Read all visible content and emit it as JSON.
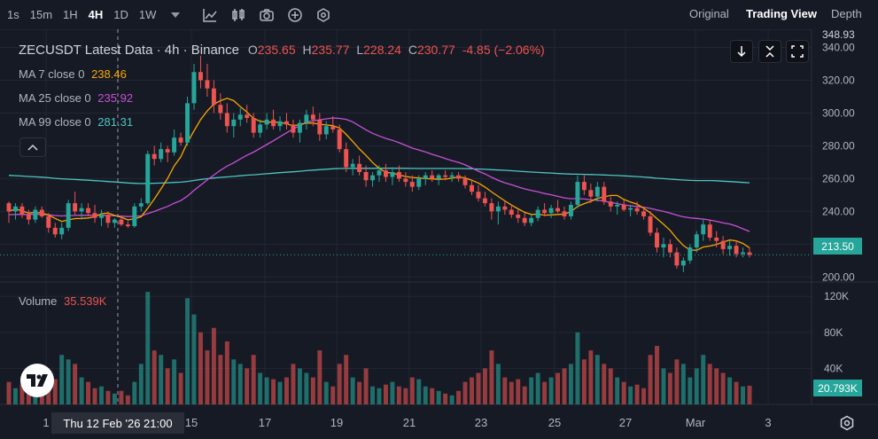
{
  "toolbar": {
    "intervals": [
      "1s",
      "15m",
      "1H",
      "4H",
      "1D",
      "1W"
    ],
    "active_interval": "4H",
    "views": [
      "Original",
      "Trading View",
      "Depth"
    ],
    "active_view": "Trading View"
  },
  "header": {
    "symbol": "ZECUSDT Latest Data · 4h · Binance",
    "o_label": "O",
    "o_value": "235.65",
    "h_label": "H",
    "h_value": "235.77",
    "l_label": "L",
    "l_value": "228.24",
    "c_label": "C",
    "c_value": "230.77",
    "change": "-4.85 (−2.06%)"
  },
  "indicators": {
    "ma7_label": "MA 7 close 0",
    "ma7_value": "238.46",
    "ma25_label": "MA 25 close 0",
    "ma25_value": "235.92",
    "ma99_label": "MA 99 close 0",
    "ma99_value": "281.31",
    "volume_label": "Volume",
    "volume_value": "35.539K"
  },
  "price_axis": {
    "top_partial": "348.93",
    "ticks": [
      "340.00",
      "320.00",
      "300.00",
      "280.00",
      "260.00",
      "240.00",
      "220.00",
      "200.00"
    ],
    "last_price": "213.50"
  },
  "volume_axis": {
    "ticks": [
      "120K",
      "80K",
      "40K"
    ],
    "last_volume": "20.793K"
  },
  "time_axis": {
    "ticks": [
      "15",
      "17",
      "19",
      "21",
      "23",
      "25",
      "27",
      "Mar",
      "3"
    ],
    "partial_left": "1",
    "crosshair_label": "Thu 12 Feb '26   21:00"
  },
  "colors": {
    "background": "#161a25",
    "up": "#26a69a",
    "down": "#ef5350",
    "ma7": "#f7a600",
    "ma25": "#c850d6",
    "ma99": "#4ec5c1",
    "grid": "#232735"
  },
  "icons": [
    "chevron-down-icon",
    "indicators-icon",
    "chart-type-icon",
    "camera-icon",
    "add-circle-icon",
    "settings-hex-icon",
    "arrow-down-icon",
    "collapse-arrows-icon",
    "fullscreen-icon",
    "chevron-up-icon",
    "tradingview-logo-icon",
    "settings-gear-icon"
  ],
  "chart_data": {
    "type": "candlestick",
    "symbol": "ZECUSDT",
    "interval": "4h",
    "exchange": "Binance",
    "ylim": [
      198,
      348.93
    ],
    "volume_ylim": [
      0,
      135000
    ],
    "x_ticks": [
      "15",
      "17",
      "19",
      "21",
      "23",
      "25",
      "27",
      "Mar",
      "3"
    ],
    "y_ticks": [
      340,
      320,
      300,
      280,
      260,
      240,
      220,
      200
    ],
    "volume_ticks": [
      "120K",
      "80K",
      "40K"
    ],
    "grid": true,
    "last_price": 213.5,
    "last_volume": 20793,
    "candles": [
      [
        245.0,
        246.0,
        233.0,
        240.0,
        25000
      ],
      [
        240.0,
        245.0,
        235.0,
        243.0,
        18000
      ],
      [
        243.0,
        245.0,
        236.0,
        238.0,
        22000
      ],
      [
        238.0,
        241.0,
        232.0,
        235.0,
        15000
      ],
      [
        235.0,
        243.0,
        233.0,
        241.0,
        30000
      ],
      [
        241.0,
        243.0,
        236.0,
        237.0,
        20000
      ],
      [
        237.0,
        239.0,
        227.0,
        230.0,
        35000
      ],
      [
        230.0,
        233.0,
        224.0,
        226.0,
        28000
      ],
      [
        226.0,
        233.0,
        223.0,
        230.0,
        55000
      ],
      [
        230.0,
        247.0,
        228.0,
        245.0,
        50000
      ],
      [
        245.0,
        252.0,
        238.0,
        240.0,
        45000
      ],
      [
        240.0,
        245.0,
        235.0,
        242.0,
        30000
      ],
      [
        242.0,
        245.0,
        237.0,
        239.0,
        25000
      ],
      [
        239.0,
        244.0,
        233.0,
        236.0,
        18000
      ],
      [
        236.0,
        241.0,
        231.0,
        238.0,
        20000
      ],
      [
        238.0,
        240.0,
        230.0,
        233.0,
        15000
      ],
      [
        233.0,
        236.0,
        230.0,
        235.0,
        12000
      ],
      [
        235.0,
        237.0,
        231.0,
        232.0,
        15000
      ],
      [
        232.0,
        234.0,
        230.0,
        231.0,
        10000
      ],
      [
        231.0,
        245.0,
        230.0,
        243.0,
        25000
      ],
      [
        243.0,
        248.0,
        240.0,
        245.0,
        45000
      ],
      [
        245.0,
        277.0,
        244.0,
        275.0,
        125000
      ],
      [
        275.0,
        280.0,
        268.0,
        272.0,
        60000
      ],
      [
        272.0,
        282.0,
        270.0,
        278.0,
        55000
      ],
      [
        278.0,
        280.0,
        270.0,
        276.0,
        40000
      ],
      [
        276.0,
        290.0,
        274.0,
        285.0,
        50000
      ],
      [
        285.0,
        288.0,
        280.0,
        282.0,
        35000
      ],
      [
        282.0,
        310.0,
        280.0,
        306.0,
        118000
      ],
      [
        306.0,
        330.0,
        302.0,
        325.0,
        100000
      ],
      [
        325.0,
        335.0,
        315.0,
        320.0,
        80000
      ],
      [
        320.0,
        330.0,
        310.0,
        315.0,
        60000
      ],
      [
        315.0,
        320.0,
        300.0,
        305.0,
        85000
      ],
      [
        305.0,
        312.0,
        296.0,
        300.0,
        55000
      ],
      [
        300.0,
        306.0,
        288.0,
        292.0,
        70000
      ],
      [
        292.0,
        300.0,
        285.0,
        296.0,
        50000
      ],
      [
        296.0,
        303.0,
        292.0,
        299.0,
        45000
      ],
      [
        299.0,
        305.0,
        294.0,
        297.0,
        40000
      ],
      [
        297.0,
        300.0,
        285.0,
        288.0,
        55000
      ],
      [
        288.0,
        296.0,
        285.0,
        293.0,
        35000
      ],
      [
        293.0,
        300.0,
        290.0,
        296.0,
        30000
      ],
      [
        296.0,
        302.0,
        290.0,
        292.0,
        28000
      ],
      [
        292.0,
        298.0,
        289.0,
        295.0,
        25000
      ],
      [
        295.0,
        300.0,
        290.0,
        293.0,
        30000
      ],
      [
        293.0,
        296.0,
        285.0,
        288.0,
        45000
      ],
      [
        288.0,
        296.0,
        282.0,
        294.0,
        40000
      ],
      [
        294.0,
        302.0,
        290.0,
        299.0,
        35000
      ],
      [
        299.0,
        304.0,
        292.0,
        296.0,
        30000
      ],
      [
        296.0,
        300.0,
        283.0,
        287.0,
        60000
      ],
      [
        287.0,
        295.0,
        284.0,
        292.0,
        25000
      ],
      [
        292.0,
        298.0,
        288.0,
        290.0,
        20000
      ],
      [
        290.0,
        293.0,
        276.0,
        278.0,
        45000
      ],
      [
        278.0,
        282.0,
        264.0,
        267.0,
        55000
      ],
      [
        267.0,
        272.0,
        262.0,
        269.0,
        30000
      ],
      [
        269.0,
        274.0,
        262.0,
        264.0,
        25000
      ],
      [
        264.0,
        268.0,
        255.0,
        259.0,
        40000
      ],
      [
        259.0,
        264.0,
        255.0,
        262.0,
        20000
      ],
      [
        262.0,
        268.0,
        258.0,
        265.0,
        18000
      ],
      [
        265.0,
        269.0,
        258.0,
        261.0,
        22000
      ],
      [
        261.0,
        267.0,
        256.0,
        264.0,
        25000
      ],
      [
        264.0,
        268.0,
        258.0,
        260.0,
        20000
      ],
      [
        260.0,
        264.0,
        255.0,
        258.0,
        18000
      ],
      [
        258.0,
        262.0,
        252.0,
        255.0,
        30000
      ],
      [
        255.0,
        262.0,
        253.0,
        260.0,
        28000
      ],
      [
        260.0,
        264.0,
        256.0,
        262.0,
        20000
      ],
      [
        262.0,
        265.0,
        258.0,
        260.0,
        18000
      ],
      [
        260.0,
        263.0,
        256.0,
        262.0,
        15000
      ],
      [
        262.0,
        265.0,
        259.0,
        261.0,
        12000
      ],
      [
        261.0,
        264.0,
        258.0,
        262.0,
        10000
      ],
      [
        262.0,
        264.0,
        258.0,
        260.0,
        15000
      ],
      [
        260.0,
        262.0,
        254.0,
        256.0,
        25000
      ],
      [
        256.0,
        259.0,
        250.0,
        252.0,
        30000
      ],
      [
        252.0,
        256.0,
        246.0,
        248.0,
        35000
      ],
      [
        248.0,
        252.0,
        243.0,
        245.0,
        40000
      ],
      [
        245.0,
        248.0,
        235.0,
        240.0,
        60000
      ],
      [
        240.0,
        246.0,
        232.0,
        243.0,
        45000
      ],
      [
        243.0,
        246.0,
        238.0,
        241.0,
        30000
      ],
      [
        241.0,
        244.0,
        236.0,
        238.0,
        25000
      ],
      [
        238.0,
        241.0,
        233.0,
        236.0,
        28000
      ],
      [
        236.0,
        239.0,
        231.0,
        233.0,
        20000
      ],
      [
        233.0,
        238.0,
        231.0,
        236.0,
        30000
      ],
      [
        236.0,
        243.0,
        234.0,
        241.0,
        35000
      ],
      [
        241.0,
        245.0,
        237.0,
        239.0,
        25000
      ],
      [
        239.0,
        244.0,
        236.0,
        242.0,
        30000
      ],
      [
        242.0,
        247.0,
        239.0,
        240.0,
        35000
      ],
      [
        240.0,
        243.0,
        235.0,
        237.0,
        40000
      ],
      [
        237.0,
        246.0,
        235.0,
        244.0,
        45000
      ],
      [
        244.0,
        262.0,
        242.0,
        258.0,
        80000
      ],
      [
        258.0,
        262.0,
        250.0,
        253.0,
        50000
      ],
      [
        253.0,
        257.0,
        245.0,
        249.0,
        60000
      ],
      [
        249.0,
        258.0,
        246.0,
        255.0,
        55000
      ],
      [
        255.0,
        258.0,
        244.0,
        246.0,
        45000
      ],
      [
        246.0,
        249.0,
        240.0,
        243.0,
        40000
      ],
      [
        243.0,
        246.0,
        238.0,
        244.0,
        30000
      ],
      [
        244.0,
        247.0,
        240.0,
        241.0,
        25000
      ],
      [
        241.0,
        244.0,
        237.0,
        242.0,
        20000
      ],
      [
        242.0,
        246.0,
        238.0,
        240.0,
        22000
      ],
      [
        240.0,
        243.0,
        235.0,
        237.0,
        18000
      ],
      [
        237.0,
        240.0,
        225.0,
        227.0,
        55000
      ],
      [
        227.0,
        230.0,
        215.0,
        218.0,
        65000
      ],
      [
        218.0,
        224.0,
        212.0,
        220.0,
        40000
      ],
      [
        220.0,
        223.0,
        212.0,
        215.0,
        35000
      ],
      [
        215.0,
        218.0,
        205.0,
        207.0,
        50000
      ],
      [
        207.0,
        212.0,
        203.0,
        210.0,
        45000
      ],
      [
        210.0,
        220.0,
        208.0,
        218.0,
        30000
      ],
      [
        218.0,
        228.0,
        215.0,
        226.0,
        40000
      ],
      [
        226.0,
        235.0,
        222.0,
        232.0,
        55000
      ],
      [
        232.0,
        235.0,
        222.0,
        224.0,
        45000
      ],
      [
        224.0,
        228.0,
        218.0,
        222.0,
        40000
      ],
      [
        222.0,
        225.0,
        214.0,
        217.0,
        35000
      ],
      [
        217.0,
        222.0,
        213.0,
        219.0,
        30000
      ],
      [
        219.0,
        222.0,
        212.0,
        214.0,
        25000
      ],
      [
        214.0,
        218.0,
        212.0,
        215.0,
        20000
      ],
      [
        215.0,
        218.0,
        212.0,
        213.5,
        20793
      ]
    ]
  }
}
